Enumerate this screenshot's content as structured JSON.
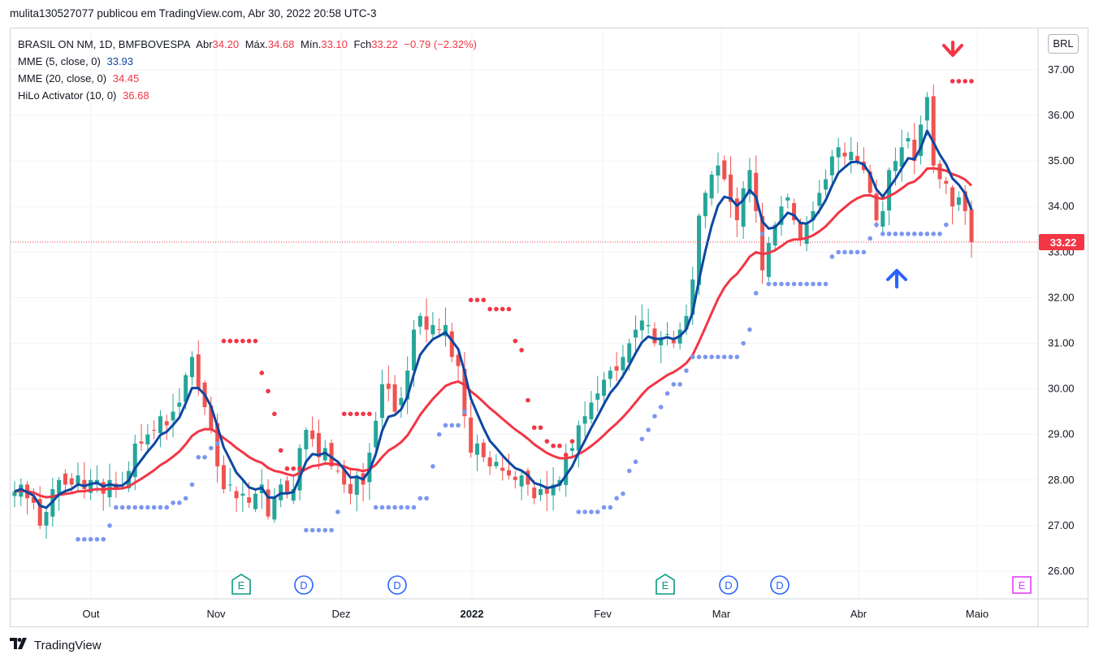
{
  "header": {
    "caption": "mulita130527077 publicou em TradingView.com, Abr 30, 2022 20:58 UTC-3"
  },
  "legend": {
    "symbol": "BRASIL ON NM, 1D, BMFBOVESPA",
    "open_label": "Abr",
    "open": "34.20",
    "high_label": "Máx.",
    "high": "34.68",
    "low_label": "Mín.",
    "low": "33.10",
    "close_label": "Fch",
    "close": "33.22",
    "change": "−0.79 (−2.32%)",
    "ema5_label": "MME (5, close, 0)",
    "ema5_value": "33.93",
    "ema20_label": "MME (20, close, 0)",
    "ema20_value": "34.45",
    "hilo_label": "HiLo Activator (10, 0)",
    "hilo_value": "36.68"
  },
  "currency_button": "BRL",
  "price_tag": "33.22",
  "footer": {
    "brand": "TradingView"
  },
  "colors": {
    "up": "#26a69a",
    "down": "#ef5350",
    "ema5": "#0d47a1",
    "ema20": "#f23645",
    "hilo_up": "#7b97f0",
    "hilo_down": "#f23645",
    "event_earnings": "#089981",
    "event_dividend": "#2962ff",
    "event_future": "#e040fb"
  },
  "chart_data": {
    "type": "candlestick",
    "y_axis": {
      "ticks": [
        26,
        27,
        28,
        29,
        30,
        31,
        32,
        33,
        34,
        35,
        36,
        37
      ],
      "ylim": [
        25.5,
        37.7
      ]
    },
    "x_axis": {
      "labels": [
        "Out",
        "Nov",
        "Dez",
        "2022",
        "Fev",
        "Mar",
        "Abr",
        "Maio"
      ]
    },
    "last_close": 33.22,
    "series": [
      {
        "name": "MME (5, close, 0)",
        "last": 33.93
      },
      {
        "name": "MME (20, close, 0)",
        "last": 34.45
      },
      {
        "name": "HiLo Activator (10, 0)",
        "last": 36.68
      }
    ],
    "candles_close": [
      27.75,
      27.9,
      27.6,
      27.5,
      27.0,
      27.3,
      27.8,
      28.0,
      27.9,
      27.9,
      28.1,
      27.8,
      28.0,
      28.0,
      27.7,
      28.0,
      27.8,
      27.9,
      28.2,
      28.8,
      28.8,
      29.0,
      29.1,
      29.4,
      29.2,
      29.5,
      29.7,
      30.3,
      30.7,
      30.0,
      29.6,
      29.1,
      28.3,
      27.8,
      27.9,
      27.6,
      27.7,
      27.5,
      27.7,
      27.9,
      27.2,
      27.6,
      27.9,
      27.7,
      27.8,
      28.7,
      29.1,
      28.9,
      28.5,
      28.7,
      28.3,
      28.2,
      27.9,
      27.7,
      28.1,
      27.9,
      28.6,
      29.3,
      30.1,
      30.0,
      29.5,
      29.8,
      30.4,
      31.3,
      31.6,
      31.3,
      31.4,
      31.3,
      31.4,
      30.7,
      30.5,
      29.4,
      28.6,
      28.8,
      28.5,
      28.3,
      28.4,
      28.2,
      28.1,
      28.0,
      28.1,
      27.9,
      27.6,
      27.8,
      27.7,
      27.9,
      28.0,
      28.5,
      28.7,
      29.2,
      29.4,
      29.7,
      29.9,
      30.2,
      30.4,
      30.4,
      30.7,
      31.0,
      31.3,
      31.5,
      31.4,
      31.0,
      31.1,
      31.2,
      31.0,
      31.3,
      31.6,
      32.4,
      33.8,
      34.3,
      34.7,
      34.9,
      34.6,
      34.1,
      33.7,
      34.4,
      34.8,
      33.9,
      32.6,
      33.2,
      33.6,
      34.0,
      34.2,
      33.7,
      33.3,
      33.6,
      33.9,
      34.3,
      34.6,
      35.1,
      35.3,
      35.1,
      35.2,
      35.0,
      34.8,
      34.3,
      33.7,
      33.9,
      34.8,
      35.0,
      35.3,
      35.5,
      35.0,
      35.8,
      36.4,
      34.9,
      34.6,
      34.5,
      34.0,
      34.2,
      33.9,
      33.22
    ],
    "events": [
      {
        "type": "earnings",
        "label": "E",
        "month": "Nov"
      },
      {
        "type": "dividend",
        "label": "D",
        "month": "Nov"
      },
      {
        "type": "dividend",
        "label": "D",
        "month": "Dez"
      },
      {
        "type": "earnings",
        "label": "E",
        "month": "Fev"
      },
      {
        "type": "dividend",
        "label": "D",
        "month": "Mar"
      },
      {
        "type": "dividend",
        "label": "D",
        "month": "Mar"
      },
      {
        "type": "earnings_future",
        "label": "E",
        "month": "Maio"
      }
    ],
    "signals": [
      {
        "type": "sell",
        "label": "down-arrow"
      },
      {
        "type": "buy",
        "label": "up-arrow"
      }
    ]
  }
}
